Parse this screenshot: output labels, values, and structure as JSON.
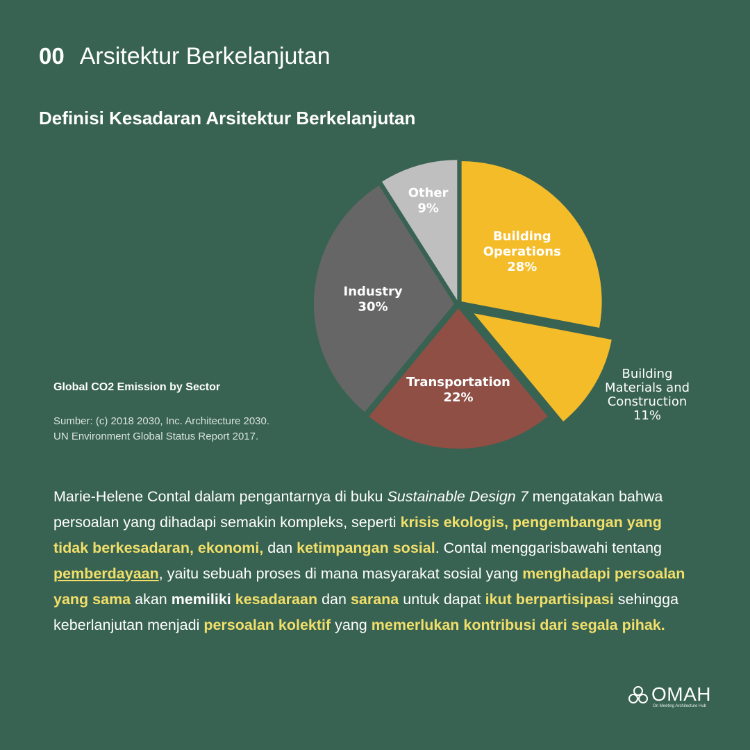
{
  "header": {
    "number": "00",
    "title": "Arsitektur Berkelanjutan"
  },
  "subtitle": "Definisi Kesadaran Arsitektur Berkelanjutan",
  "chart_data": {
    "type": "pie",
    "title": "Global CO2 Emission by Sector",
    "slices": [
      {
        "label": [
          "Building",
          "Operations"
        ],
        "value": 28,
        "pct_label": "28%",
        "color": "#f5bc2a"
      },
      {
        "label": [
          "Building",
          "Materials and",
          "Construction"
        ],
        "value": 11,
        "pct_label": "11%",
        "color": "#f5bc2a"
      },
      {
        "label": [
          "Transportation"
        ],
        "value": 22,
        "pct_label": "22%",
        "color": "#8f4f45"
      },
      {
        "label": [
          "Industry"
        ],
        "value": 30,
        "pct_label": "30%",
        "color": "#666666"
      },
      {
        "label": [
          "Other"
        ],
        "value": 9,
        "pct_label": "9%",
        "color": "#bfbfbf"
      }
    ]
  },
  "source": {
    "line1": "Sumber: (c) 2018 2030, Inc. Architecture 2030.",
    "line2": "UN Environment Global Status Report 2017."
  },
  "body": {
    "p1": "Marie-Helene Contal dalam pengantarnya di buku ",
    "p2": "Sustainable Design 7",
    "p3": " mengatakan bahwa persoalan yang dihadapi semakin kompleks, seperti ",
    "h1": "krisis ekologis, pengembangan yang tidak berkesadaran, ekonomi,",
    "p4": " dan ",
    "h2": "ketimpangan sosial",
    "p5": ". Contal menggarisbawahi tentang ",
    "u1": "pemberdayaan",
    "p6": ", yaitu sebuah proses di mana masyarakat sosial yang ",
    "h3": "menghadapi persoalan yang sama",
    "p7": " akan ",
    "b1": "memiliki",
    "p8": " ",
    "h4": "kesadaraan",
    "p9": " dan ",
    "h5": "sarana",
    "p10": " untuk dapat ",
    "h6": "ikut berpartisipasi",
    "p11": " sehingga keberlanjutan menjadi ",
    "h7": "persoalan kolektif",
    "p12": " yang ",
    "h8": "memerlukan kontribusi dari segala pihak."
  },
  "logo": {
    "word": "OMAH",
    "tagline": "On Meeting Architecture Hub"
  }
}
